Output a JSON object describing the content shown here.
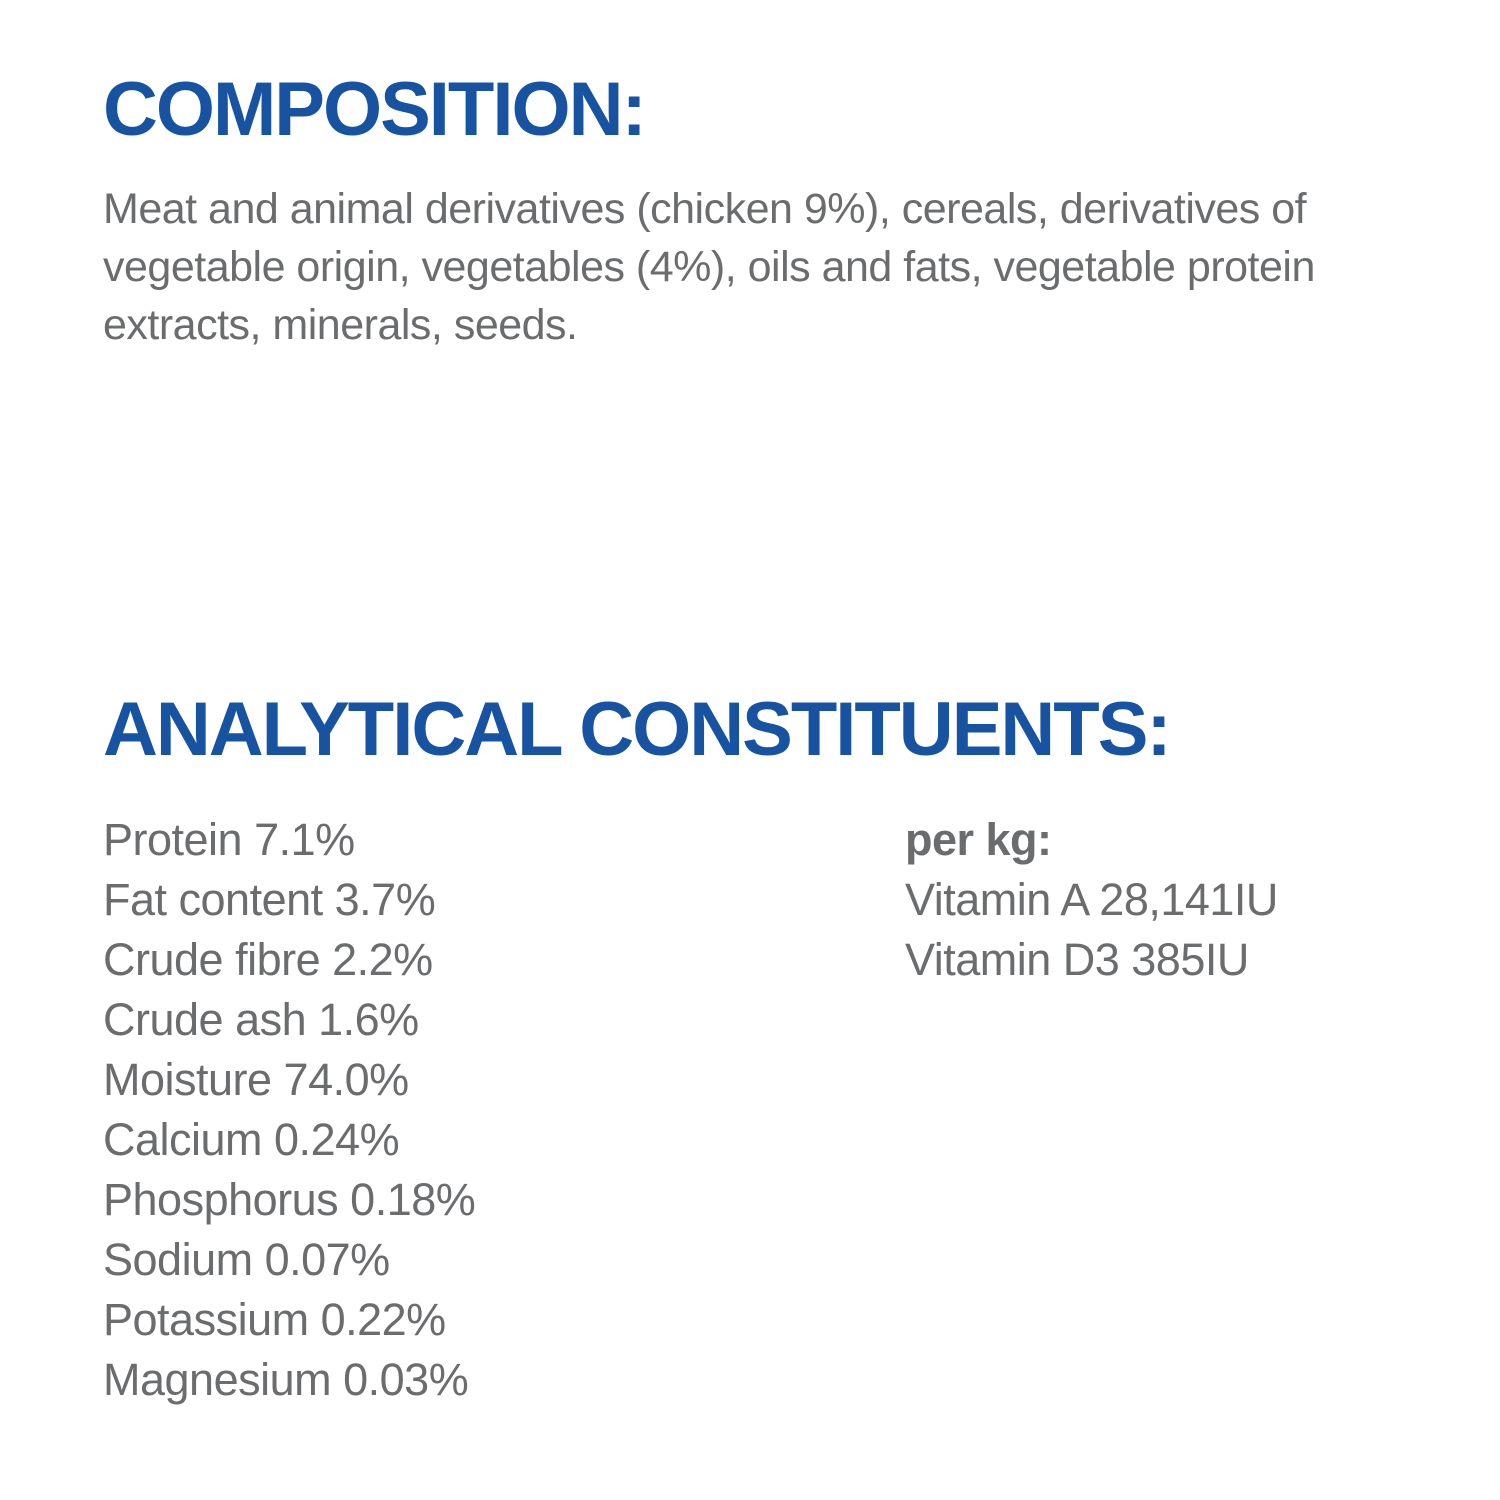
{
  "colors": {
    "heading_blue": "#1853a1",
    "body_gray": "#6b6c6e",
    "background": "#ffffff"
  },
  "composition": {
    "heading": "COMPOSITION:",
    "body": "Meat and animal derivatives (chicken 9%), cereals, derivatives of vegetable origin, vegetables (4%), oils and fats, vegetable protein extracts, minerals, seeds."
  },
  "analytical": {
    "heading": "ANALYTICAL CONSTITUENTS:",
    "nutrients": [
      "Protein 7.1%",
      "Fat content 3.7%",
      "Crude fibre 2.2%",
      "Crude ash 1.6%",
      "Moisture 74.0%",
      "Calcium 0.24%",
      "Phosphorus 0.18%",
      "Sodium 0.07%",
      "Potassium 0.22%",
      "Magnesium 0.03%"
    ],
    "per_kg": {
      "label": "per kg:",
      "vitamins": [
        "Vitamin A 28,141IU",
        "Vitamin D3 385IU"
      ]
    }
  }
}
